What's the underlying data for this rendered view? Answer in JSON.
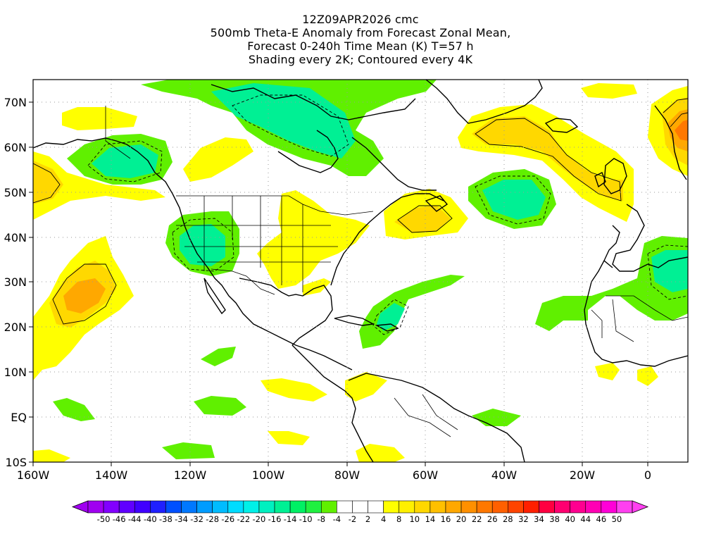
{
  "header": {
    "line1": "12Z09APR2026 cmc",
    "line2": "500mb Theta-E Anomaly from Forecast Zonal Mean,",
    "line3": "Forecast 0-240h Time Mean (K) T=57 h",
    "line4": "Shading every 2K; Contoured every 4K"
  },
  "map": {
    "lat_labels": [
      "70N",
      "60N",
      "50N",
      "40N",
      "30N",
      "20N",
      "10N",
      "EQ",
      "10S"
    ],
    "lon_labels": [
      "160W",
      "140W",
      "120W",
      "100W",
      "80W",
      "60W",
      "40W",
      "20W",
      "0"
    ]
  },
  "colorbar": {
    "labels": [
      "-50",
      "-46",
      "-44",
      "-40",
      "-38",
      "-34",
      "-32",
      "-28",
      "-26",
      "-22",
      "-20",
      "-16",
      "-14",
      "-10",
      "-8",
      "-4",
      "-2",
      "2",
      "4",
      "8",
      "10",
      "14",
      "16",
      "20",
      "22",
      "26",
      "28",
      "32",
      "34",
      "38",
      "40",
      "44",
      "46",
      "50"
    ],
    "colors": [
      "#a000f0",
      "#8200ff",
      "#6000ff",
      "#4000ff",
      "#2020ff",
      "#0050ff",
      "#0078ff",
      "#009cff",
      "#00bcff",
      "#00dcff",
      "#00f0e8",
      "#00f0c0",
      "#00f094",
      "#00f064",
      "#20f040",
      "#60f000",
      "#ffffff",
      "#ffffff",
      "#ffffff",
      "#ffff00",
      "#fff000",
      "#ffd800",
      "#ffc000",
      "#ffa800",
      "#ff9000",
      "#ff7800",
      "#ff6000",
      "#ff4400",
      "#ff2000",
      "#ff0040",
      "#ff0070",
      "#ff0090",
      "#ff00b4",
      "#ff00d8",
      "#ff40f0"
    ]
  },
  "palette": {
    "green": "#60f000",
    "lightgreen": "#00f064",
    "teal": "#00f094",
    "yellow": "#ffff00",
    "gold": "#ffd800",
    "orange": "#ffa800",
    "deeporange": "#ff7800"
  }
}
